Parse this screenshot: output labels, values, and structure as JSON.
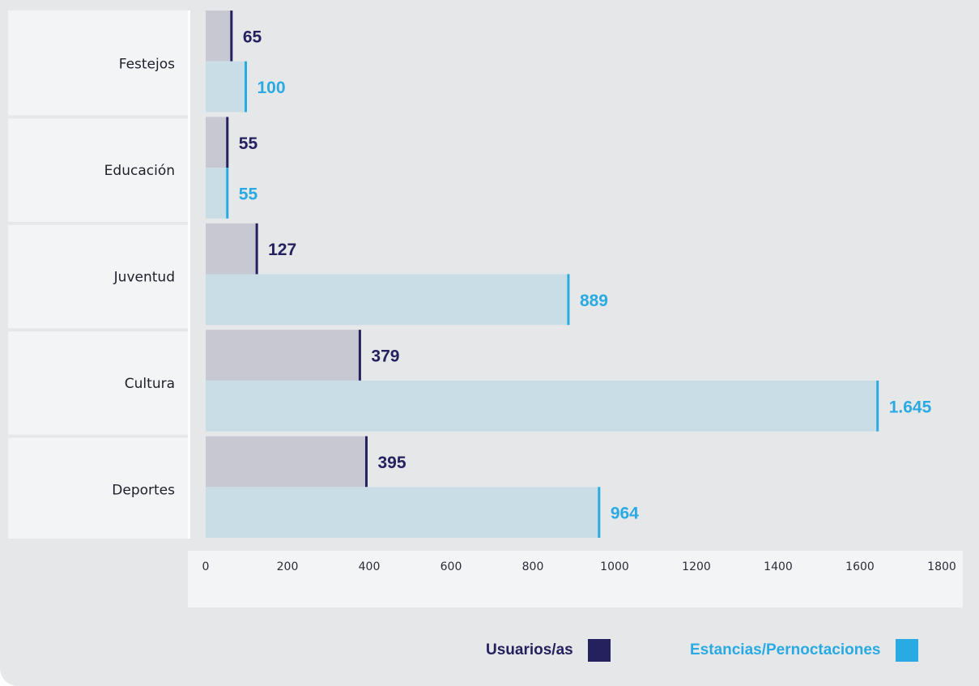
{
  "colors": {
    "usuarios_value": "#25215f",
    "usuarios_bar": "#c8c8d3",
    "estancias_value": "#2aaae2",
    "estancias_bar": "#c9dde6",
    "category_panel": "#f3f4f6",
    "axis_panel": "#f3f4f6",
    "card_background": "#e6e7e9"
  },
  "chart_data": {
    "type": "bar",
    "orientation": "horizontal",
    "categories": [
      "Festejos",
      "Educación",
      "Juventud",
      "Cultura",
      "Deportes"
    ],
    "series": [
      {
        "name": "Usuarios/as",
        "values": [
          65,
          55,
          127,
          379,
          395
        ],
        "value_labels": [
          "65",
          "55",
          "127",
          "379",
          "395"
        ]
      },
      {
        "name": "Estancias/Pernoctaciones",
        "values": [
          100,
          55,
          889,
          1645,
          964
        ],
        "value_labels": [
          "100",
          "55",
          "889",
          "1.645",
          "964"
        ]
      }
    ],
    "xlim": [
      0,
      1800
    ],
    "x_ticks": [
      "0",
      "200",
      "400",
      "600",
      "800",
      "1000",
      "1200",
      "1400",
      "1600",
      "1800"
    ],
    "grid": false,
    "legend_position": "bottom-right"
  },
  "legend": {
    "usuarios_label": "Usuarios/as",
    "estancias_label": "Estancias/Pernoctaciones"
  }
}
